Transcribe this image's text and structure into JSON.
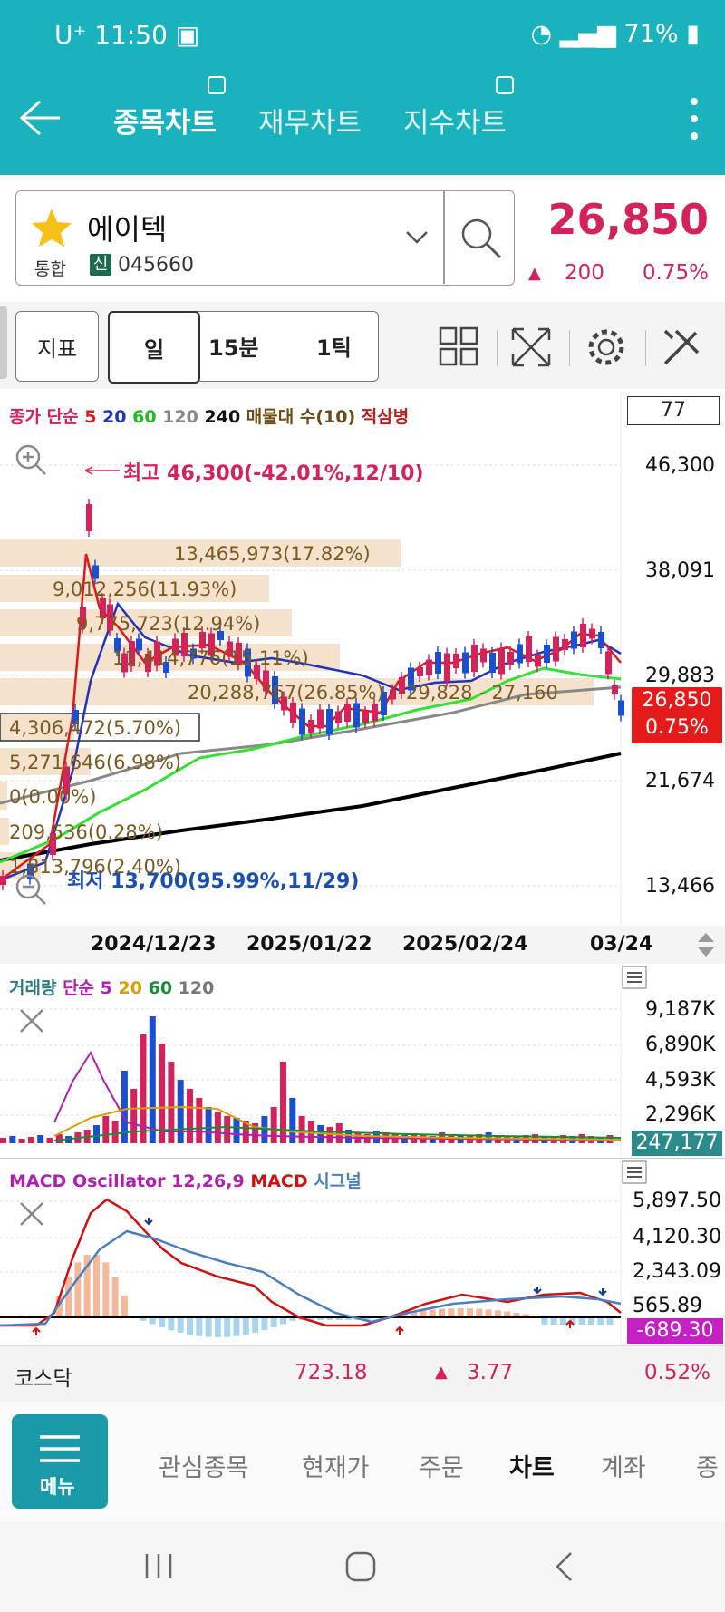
{
  "status": {
    "carrier": "U⁺",
    "time": "11:50",
    "battery": "71%"
  },
  "header": {
    "tabs": [
      {
        "label": "종목차트",
        "active": true
      },
      {
        "label": "재무차트",
        "active": false
      },
      {
        "label": "지수차트",
        "active": false
      }
    ]
  },
  "stock": {
    "name": "에이텍",
    "market": "통합",
    "badge": "신",
    "code": "045660",
    "price": "26,850",
    "change": "200",
    "change_pct": "0.75%"
  },
  "toolbar": {
    "indicator": "지표",
    "period_day": "일",
    "period_min": "15분",
    "period_tick": "1틱",
    "count": "77"
  },
  "price_chart": {
    "legend": {
      "close": "종가",
      "simple": "단순",
      "ma5": "5",
      "ma20": "20",
      "ma60": "60",
      "ma120": "120",
      "ma240": "240",
      "volprofile": "매물대 수(10)",
      "stack": "적삼병"
    },
    "high_label": "최고 46,300(-42.01%,12/10)",
    "low_label": "최저 13,700(95.99%,11/29)",
    "y_ticks": [
      "46,300",
      "38,091",
      "29,883",
      "21,674",
      "13,466"
    ],
    "current_price": "26,850",
    "current_pct": "0.75%",
    "x_ticks": [
      "2024/12/23",
      "2025/01/22",
      "2025/02/24",
      "03/24"
    ],
    "volume_profile": [
      "13,465,973(17.82%)",
      "9,012,256(11.93%)",
      "9,775,723(12.94%)",
      "11,414,776(15.11%)",
      "20,288,767(26.85%)",
      "4,306,472(5.70%)",
      "5,271,646(6.98%)",
      "0(0.00%)",
      "209,536(0.28%)",
      "1,813,796(2.40%)"
    ],
    "vp_active_range": "29,828 - 27,160"
  },
  "volume_chart": {
    "legend": {
      "title": "거래량",
      "simple": "단순",
      "ma5": "5",
      "ma20": "20",
      "ma60": "60",
      "ma120": "120"
    },
    "y_ticks": [
      "9,187K",
      "6,890K",
      "4,593K",
      "2,296K"
    ],
    "current": "247,177"
  },
  "macd_chart": {
    "legend": {
      "osc": "MACD Oscillator 12,26,9",
      "macd": "MACD",
      "signal": "시그널"
    },
    "y_ticks": [
      "5,897.50",
      "4,120.30",
      "2,343.09",
      "565.89"
    ],
    "current": "-689.30"
  },
  "index": {
    "name": "코스닥",
    "value": "723.18",
    "change": "3.77",
    "change_pct": "0.52%"
  },
  "nav": {
    "menu": "메뉴",
    "items": [
      "관심종목",
      "현재가",
      "주문",
      "차트",
      "계좌",
      "종"
    ],
    "active": "차트"
  },
  "colors": {
    "header": "#1ab3bd",
    "up": "#d4225a",
    "down": "#1a4fd0",
    "ma5": "#e0181a",
    "ma20": "#2233bb",
    "ma60": "#33e033",
    "ma120": "#888888",
    "ma240": "#000000"
  }
}
